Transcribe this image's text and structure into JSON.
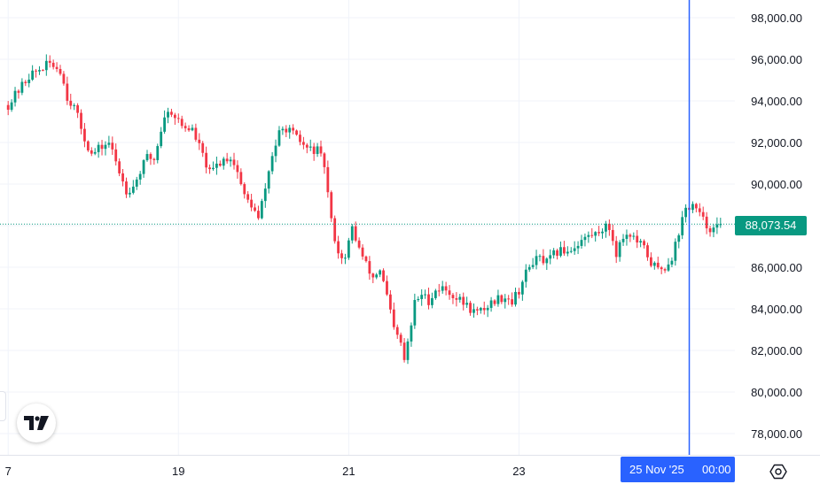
{
  "chart_data": {
    "type": "candlestick",
    "y_axis": {
      "min": 77000,
      "max": 98500,
      "ticks": [
        "98,000.00",
        "96,000.00",
        "94,000.00",
        "92,000.00",
        "90,000.00",
        "86,000.00",
        "84,000.00",
        "82,000.00",
        "80,000.00",
        "78,000.00"
      ],
      "tick_values": [
        98000,
        96000,
        94000,
        92000,
        90000,
        86000,
        84000,
        82000,
        80000,
        78000
      ]
    },
    "x_axis": {
      "ticks": [
        "7",
        "19",
        "21",
        "23"
      ],
      "tick_index": [
        0,
        49,
        98,
        147
      ]
    },
    "current_price": {
      "value": 88073.54,
      "label": "88,073.54"
    },
    "crosshair": {
      "index": 196,
      "date_label": "25 Nov '25",
      "time_label": "00:00"
    },
    "anchors": [
      [
        0,
        93800
      ],
      [
        3,
        94500
      ],
      [
        6,
        95200
      ],
      [
        10,
        95600
      ],
      [
        12,
        95800
      ],
      [
        15,
        95500
      ],
      [
        17,
        94200
      ],
      [
        19,
        93700
      ],
      [
        22,
        92200
      ],
      [
        24,
        91400
      ],
      [
        27,
        91800
      ],
      [
        29,
        92000
      ],
      [
        32,
        90600
      ],
      [
        34,
        89700
      ],
      [
        36,
        89900
      ],
      [
        38,
        90600
      ],
      [
        40,
        91300
      ],
      [
        42,
        91200
      ],
      [
        45,
        93300
      ],
      [
        47,
        93500
      ],
      [
        50,
        92800
      ],
      [
        53,
        92600
      ],
      [
        55,
        91800
      ],
      [
        58,
        90500
      ],
      [
        60,
        90900
      ],
      [
        62,
        91200
      ],
      [
        64,
        91300
      ],
      [
        66,
        90600
      ],
      [
        68,
        89400
      ],
      [
        70,
        89000
      ],
      [
        72,
        88300
      ],
      [
        74,
        89800
      ],
      [
        76,
        91400
      ],
      [
        78,
        92400
      ],
      [
        80,
        92700
      ],
      [
        83,
        92200
      ],
      [
        86,
        91700
      ],
      [
        89,
        91600
      ],
      [
        91,
        90900
      ],
      [
        93,
        88200
      ],
      [
        95,
        86700
      ],
      [
        97,
        86400
      ],
      [
        99,
        87900
      ],
      [
        101,
        86900
      ],
      [
        103,
        86100
      ],
      [
        105,
        85500
      ],
      [
        107,
        85900
      ],
      [
        109,
        84600
      ],
      [
        111,
        83000
      ],
      [
        113,
        82300
      ],
      [
        114,
        81500
      ],
      [
        116,
        83200
      ],
      [
        117,
        84300
      ],
      [
        119,
        84700
      ],
      [
        121,
        84400
      ],
      [
        123,
        84900
      ],
      [
        125,
        85000
      ],
      [
        127,
        84800
      ],
      [
        129,
        84500
      ],
      [
        131,
        84300
      ],
      [
        133,
        84000
      ],
      [
        135,
        83800
      ],
      [
        137,
        84000
      ],
      [
        139,
        84300
      ],
      [
        141,
        84500
      ],
      [
        143,
        84600
      ],
      [
        145,
        84400
      ],
      [
        147,
        84900
      ],
      [
        149,
        85700
      ],
      [
        151,
        86300
      ],
      [
        153,
        86400
      ],
      [
        155,
        86200
      ],
      [
        157,
        86600
      ],
      [
        159,
        86800
      ],
      [
        161,
        86800
      ],
      [
        163,
        87000
      ],
      [
        165,
        87300
      ],
      [
        167,
        87500
      ],
      [
        169,
        87600
      ],
      [
        171,
        87900
      ],
      [
        173,
        87900
      ],
      [
        175,
        86700
      ],
      [
        177,
        87500
      ],
      [
        179,
        87600
      ],
      [
        181,
        87200
      ],
      [
        183,
        86900
      ],
      [
        185,
        86200
      ],
      [
        187,
        85900
      ],
      [
        189,
        86000
      ],
      [
        191,
        86500
      ],
      [
        193,
        87700
      ],
      [
        195,
        88800
      ],
      [
        197,
        89000
      ],
      [
        199,
        88500
      ],
      [
        201,
        88000
      ],
      [
        203,
        87800
      ],
      [
        205,
        88070
      ]
    ]
  },
  "icons": {
    "logo": "tradingview-logo-icon",
    "settings": "settings-gear-icon"
  },
  "colors": {
    "up": "#089981",
    "down": "#f23645",
    "grid": "#f0f3fa",
    "crosshair": "#2962ff",
    "badge_bg": "#089981",
    "date_bg": "#2962ff"
  }
}
